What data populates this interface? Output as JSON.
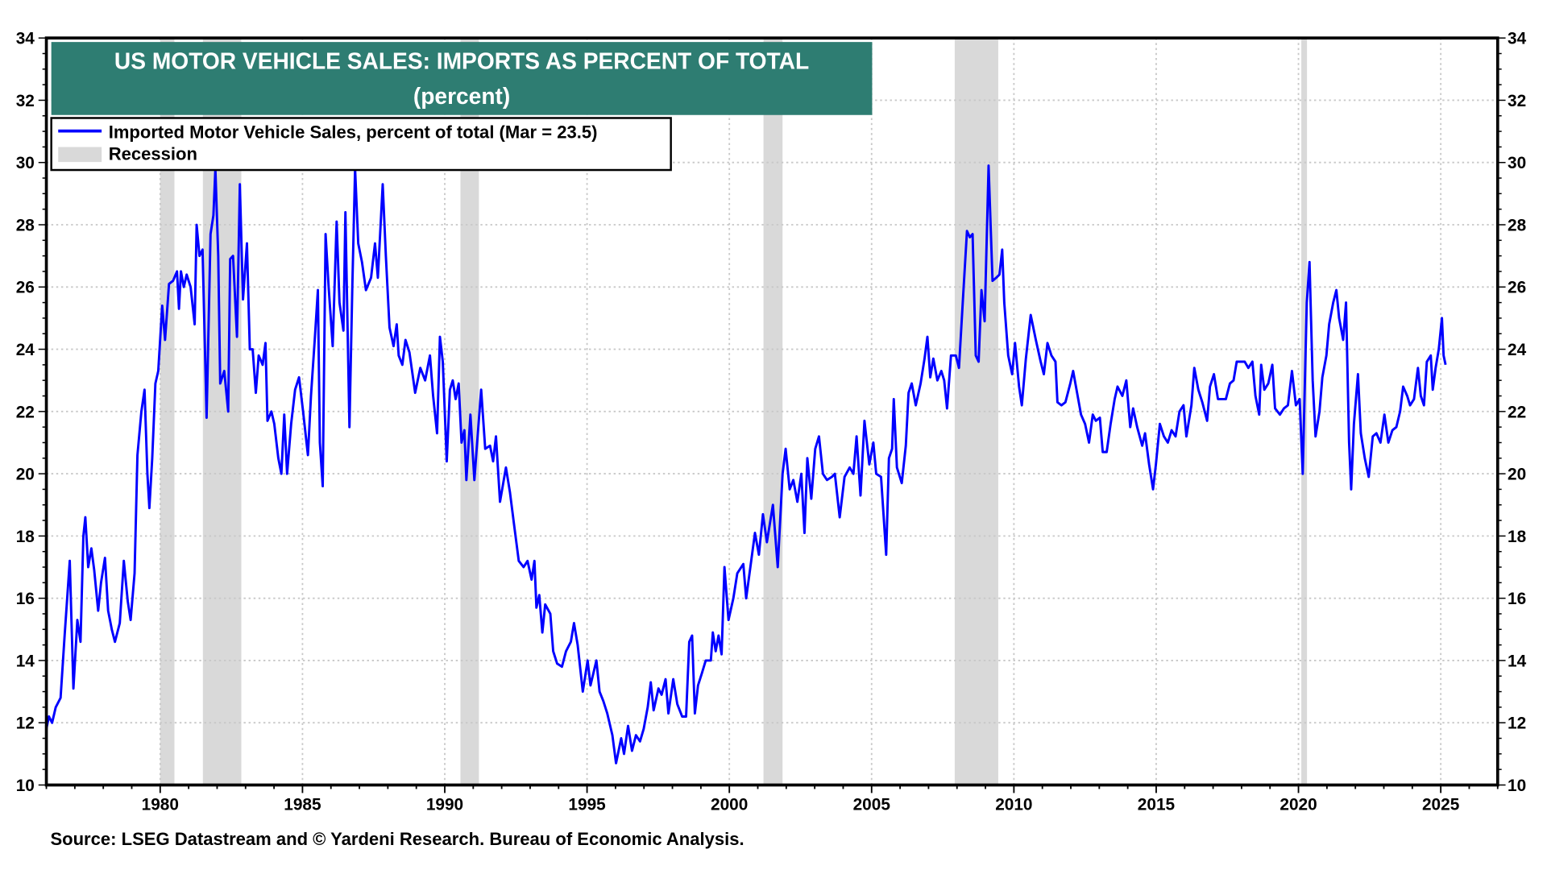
{
  "chart_data": {
    "type": "line",
    "title": "US MOTOR VEHICLE SALES: IMPORTS AS PERCENT OF TOTAL",
    "subtitle": "(percent)",
    "source": "Source: LSEG Datastream and © Yardeni Research. Bureau of Economic Analysis.",
    "xlim": [
      1976,
      2027
    ],
    "ylim": [
      10,
      34
    ],
    "x_ticks": [
      1980,
      1985,
      1990,
      1995,
      2000,
      2005,
      2010,
      2015,
      2020,
      2025
    ],
    "y_ticks": [
      10,
      12,
      14,
      16,
      18,
      20,
      22,
      24,
      26,
      28,
      30,
      32,
      34
    ],
    "grid": true,
    "legend_placement": "top-left",
    "legend": [
      {
        "label": "Imported Motor Vehicle Sales, percent of total (Mar = 23.5)",
        "color": "#0000ff",
        "kind": "line"
      },
      {
        "label": "Recession",
        "color": "#d9d9d9",
        "kind": "band"
      }
    ],
    "recessions": [
      [
        1980.0,
        1980.5
      ],
      [
        1981.5,
        1982.85
      ],
      [
        1990.55,
        1991.2
      ],
      [
        2001.2,
        2001.87
      ],
      [
        2007.92,
        2009.45
      ],
      [
        2020.1,
        2020.3
      ]
    ],
    "series": [
      {
        "color": "#0000ff",
        "x": [
          1976.0,
          1976.09,
          1976.2,
          1976.33,
          1976.5,
          1976.64,
          1976.82,
          1976.95,
          1977.09,
          1977.2,
          1977.3,
          1977.37,
          1977.47,
          1977.58,
          1977.68,
          1977.82,
          1977.92,
          1978.06,
          1978.17,
          1978.3,
          1978.41,
          1978.58,
          1978.72,
          1978.86,
          1978.96,
          1979.1,
          1979.2,
          1979.34,
          1979.45,
          1979.55,
          1979.62,
          1979.72,
          1979.83,
          1979.93,
          1980.07,
          1980.17,
          1980.31,
          1980.45,
          1980.59,
          1980.66,
          1980.73,
          1980.83,
          1980.93,
          1981.07,
          1981.21,
          1981.28,
          1981.38,
          1981.49,
          1981.63,
          1981.77,
          1981.87,
          1981.94,
          1982.04,
          1982.11,
          1982.25,
          1982.39,
          1982.46,
          1982.56,
          1982.7,
          1982.8,
          1982.91,
          1983.05,
          1983.15,
          1983.25,
          1983.36,
          1983.46,
          1983.6,
          1983.7,
          1983.77,
          1983.91,
          1984.01,
          1984.15,
          1984.26,
          1984.36,
          1984.46,
          1984.6,
          1984.74,
          1984.88,
          1985.02,
          1985.19,
          1985.3,
          1985.43,
          1985.54,
          1985.61,
          1985.71,
          1985.81,
          1985.92,
          1986.06,
          1986.2,
          1986.3,
          1986.44,
          1986.51,
          1986.65,
          1986.75,
          1986.85,
          1986.96,
          1987.09,
          1987.23,
          1987.41,
          1987.55,
          1987.65,
          1987.82,
          1987.93,
          1988.06,
          1988.2,
          1988.31,
          1988.38,
          1988.51,
          1988.62,
          1988.76,
          1988.96,
          1989.14,
          1989.31,
          1989.48,
          1989.59,
          1989.73,
          1989.83,
          1989.93,
          1990.07,
          1990.18,
          1990.28,
          1990.38,
          1990.49,
          1990.59,
          1990.69,
          1990.76,
          1990.9,
          1991.04,
          1991.18,
          1991.28,
          1991.42,
          1991.59,
          1991.7,
          1991.8,
          1991.94,
          1992.15,
          1992.29,
          1992.43,
          1992.6,
          1992.77,
          1992.91,
          1993.05,
          1993.15,
          1993.22,
          1993.32,
          1993.43,
          1993.53,
          1993.71,
          1993.81,
          1993.95,
          1994.12,
          1994.26,
          1994.43,
          1994.54,
          1994.67,
          1994.85,
          1995.02,
          1995.12,
          1995.33,
          1995.44,
          1995.57,
          1995.71,
          1995.89,
          1996.02,
          1996.2,
          1996.3,
          1996.44,
          1996.58,
          1996.72,
          1996.86,
          1996.99,
          1997.13,
          1997.24,
          1997.34,
          1997.51,
          1997.62,
          1997.76,
          1997.86,
          1998.03,
          1998.17,
          1998.34,
          1998.48,
          1998.59,
          1998.69,
          1998.79,
          1998.9,
          1999.04,
          1999.17,
          1999.35,
          1999.42,
          1999.52,
          1999.62,
          1999.73,
          1999.83,
          1999.97,
          2000.14,
          2000.28,
          2000.49,
          2000.59,
          2000.77,
          2000.9,
          2001.04,
          2001.18,
          2001.32,
          2001.53,
          2001.7,
          2001.87,
          2001.98,
          2002.12,
          2002.25,
          2002.39,
          2002.53,
          2002.64,
          2002.74,
          2002.88,
          2003.02,
          2003.15,
          2003.29,
          2003.43,
          2003.6,
          2003.71,
          2003.88,
          2004.05,
          2004.23,
          2004.36,
          2004.47,
          2004.61,
          2004.75,
          2004.92,
          2005.06,
          2005.16,
          2005.33,
          2005.51,
          2005.61,
          2005.72,
          2005.78,
          2005.89,
          2006.06,
          2006.2,
          2006.3,
          2006.41,
          2006.55,
          2006.72,
          2006.86,
          2006.96,
          2007.06,
          2007.17,
          2007.31,
          2007.45,
          2007.55,
          2007.65,
          2007.79,
          2007.96,
          2008.07,
          2008.21,
          2008.35,
          2008.45,
          2008.55,
          2008.66,
          2008.76,
          2008.86,
          2008.97,
          2009.11,
          2009.25,
          2009.38,
          2009.49,
          2009.59,
          2009.66,
          2009.8,
          2009.94,
          2010.04,
          2010.18,
          2010.28,
          2010.42,
          2010.59,
          2010.77,
          2010.94,
          2011.05,
          2011.18,
          2011.32,
          2011.46,
          2011.53,
          2011.67,
          2011.81,
          2011.98,
          2012.08,
          2012.22,
          2012.36,
          2012.5,
          2012.64,
          2012.77,
          2012.88,
          2013.02,
          2013.12,
          2013.26,
          2013.4,
          2013.54,
          2013.64,
          2013.81,
          2013.95,
          2014.09,
          2014.19,
          2014.33,
          2014.51,
          2014.61,
          2014.75,
          2014.89,
          2014.99,
          2015.13,
          2015.27,
          2015.41,
          2015.54,
          2015.68,
          2015.82,
          2015.96,
          2016.06,
          2016.24,
          2016.34,
          2016.48,
          2016.62,
          2016.79,
          2016.89,
          2017.03,
          2017.17,
          2017.31,
          2017.45,
          2017.59,
          2017.72,
          2017.83,
          2017.97,
          2018.11,
          2018.24,
          2018.38,
          2018.49,
          2018.62,
          2018.69,
          2018.8,
          2018.94,
          2019.08,
          2019.18,
          2019.35,
          2019.49,
          2019.63,
          2019.77,
          2019.91,
          2020.04,
          2020.15,
          2020.29,
          2020.39,
          2020.5,
          2020.6,
          2020.74,
          2020.84,
          2020.98,
          2021.08,
          2021.22,
          2021.33,
          2021.43,
          2021.57,
          2021.67,
          2021.78,
          2021.85,
          2021.95,
          2022.09,
          2022.19,
          2022.33,
          2022.47,
          2022.61,
          2022.74,
          2022.88,
          2023.02,
          2023.16,
          2023.3,
          2023.44,
          2023.57,
          2023.68,
          2023.82,
          2023.92,
          2024.06,
          2024.2,
          2024.3,
          2024.41,
          2024.51,
          2024.65,
          2024.72,
          2024.82,
          2024.93,
          2025.04,
          2025.1,
          2025.17
        ],
        "y": [
          11.8,
          12.2,
          12.0,
          12.5,
          12.8,
          14.8,
          17.2,
          13.1,
          15.3,
          14.6,
          18.0,
          18.6,
          17.0,
          17.6,
          16.9,
          15.6,
          16.5,
          17.3,
          15.6,
          15.0,
          14.6,
          15.2,
          17.2,
          15.9,
          15.3,
          16.8,
          20.6,
          22.0,
          22.7,
          20.0,
          18.9,
          20.5,
          22.9,
          23.3,
          25.4,
          24.3,
          26.1,
          26.2,
          26.5,
          25.3,
          26.5,
          26.0,
          26.4,
          26.0,
          24.8,
          28.0,
          27.0,
          27.2,
          21.8,
          27.7,
          28.3,
          29.8,
          27.0,
          22.9,
          23.3,
          22.0,
          26.9,
          27.0,
          24.4,
          29.3,
          25.6,
          27.4,
          24.0,
          24.0,
          22.6,
          23.8,
          23.5,
          24.2,
          21.7,
          22.0,
          21.6,
          20.5,
          20.0,
          21.9,
          20.0,
          21.6,
          22.7,
          23.1,
          22.0,
          20.6,
          22.5,
          24.3,
          25.9,
          21.0,
          19.6,
          27.7,
          26.0,
          24.1,
          28.1,
          25.5,
          24.6,
          28.4,
          21.5,
          26.0,
          29.8,
          27.4,
          26.8,
          25.9,
          26.3,
          27.4,
          26.3,
          29.3,
          27.0,
          24.7,
          24.1,
          24.8,
          23.8,
          23.5,
          24.3,
          23.9,
          22.6,
          23.4,
          23.0,
          23.8,
          22.5,
          21.3,
          24.4,
          23.6,
          20.4,
          22.7,
          23.0,
          22.4,
          22.9,
          21.0,
          21.4,
          19.8,
          21.9,
          19.8,
          21.5,
          22.7,
          20.8,
          20.9,
          20.4,
          21.2,
          19.1,
          20.2,
          19.4,
          18.4,
          17.2,
          17.0,
          17.2,
          16.6,
          17.2,
          15.7,
          16.1,
          14.9,
          15.8,
          15.5,
          14.3,
          13.9,
          13.8,
          14.3,
          14.6,
          15.2,
          14.5,
          13.0,
          14.0,
          13.2,
          14.0,
          13.0,
          12.7,
          12.3,
          11.6,
          10.7,
          11.5,
          11.0,
          11.9,
          11.1,
          11.6,
          11.4,
          11.8,
          12.5,
          13.3,
          12.4,
          13.1,
          12.9,
          13.4,
          12.3,
          13.4,
          12.6,
          12.2,
          12.2,
          14.6,
          14.8,
          12.3,
          13.2,
          13.6,
          14.0,
          14.0,
          14.9,
          14.3,
          14.8,
          14.2,
          17.0,
          15.3,
          16.0,
          16.8,
          17.1,
          16.0,
          17.2,
          18.1,
          17.4,
          18.7,
          17.8,
          19.0,
          17.0,
          20.0,
          20.8,
          19.5,
          19.8,
          19.1,
          20.0,
          18.1,
          20.5,
          19.2,
          20.8,
          21.2,
          20.0,
          19.8,
          19.9,
          20.0,
          18.6,
          19.9,
          20.2,
          20.0,
          21.2,
          19.3,
          21.7,
          20.3,
          21.0,
          20.0,
          19.9,
          17.4,
          20.5,
          20.8,
          22.4,
          20.2,
          19.7,
          20.9,
          22.6,
          22.9,
          22.2,
          22.9,
          23.7,
          24.4,
          23.1,
          23.7,
          23.0,
          23.3,
          23.0,
          22.1,
          23.8,
          23.8,
          23.4,
          25.6,
          27.8,
          27.6,
          27.7,
          23.8,
          23.6,
          25.9,
          24.9,
          29.9,
          26.2,
          26.3,
          26.4,
          27.2,
          25.5,
          23.8,
          23.2,
          24.2,
          22.8,
          22.2,
          23.7,
          25.1,
          24.3,
          23.6,
          23.2,
          24.2,
          23.8,
          23.6,
          22.3,
          22.2,
          22.3,
          22.9,
          23.3,
          22.6,
          21.9,
          21.6,
          21.0,
          21.9,
          21.7,
          21.8,
          20.7,
          20.7,
          21.6,
          22.4,
          22.8,
          22.5,
          23.0,
          21.5,
          22.1,
          21.5,
          20.9,
          21.3,
          20.3,
          19.5,
          20.3,
          21.6,
          21.2,
          21.0,
          21.4,
          21.2,
          22.0,
          22.2,
          21.2,
          22.2,
          23.4,
          22.7,
          22.3,
          21.7,
          22.8,
          23.2,
          22.4,
          22.4,
          22.4,
          22.9,
          23.0,
          23.6,
          23.6,
          23.6,
          23.4,
          23.6,
          22.5,
          21.9,
          23.5,
          22.7,
          22.9,
          23.5,
          22.1,
          21.9,
          22.1,
          22.2,
          23.3,
          22.2,
          22.4,
          20.0,
          25.5,
          26.8,
          23.0,
          21.2,
          22.0,
          23.1,
          23.8,
          24.8,
          25.5,
          25.9,
          25.0,
          24.3,
          25.5,
          21.0,
          19.5,
          21.6,
          23.2,
          21.3,
          20.5,
          19.9,
          21.2,
          21.3,
          21.0,
          21.9,
          21.0,
          21.4,
          21.5,
          22.0,
          22.8,
          22.5,
          22.2,
          22.4,
          23.4,
          22.5,
          22.2,
          23.6,
          23.8,
          22.7,
          23.4,
          24.0,
          25.0,
          23.8,
          23.5
        ]
      }
    ]
  },
  "colors": {
    "title_bg": "#2e7d72",
    "line": "#0000ff",
    "recession": "#d9d9d9",
    "grid": "#c8c8c8"
  }
}
